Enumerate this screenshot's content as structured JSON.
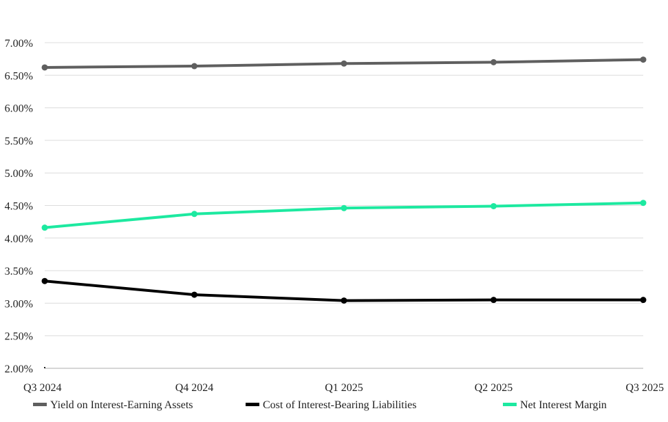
{
  "chart_data": {
    "type": "line",
    "categories": [
      "Q3 2024",
      "Q4 2024",
      "Q1 2025",
      "Q2 2025",
      "Q3 2025"
    ],
    "series": [
      {
        "name": "Yield on Interest-Earning Assets",
        "color": "#5f5f5f",
        "values": [
          6.62,
          6.64,
          6.68,
          6.7,
          6.74
        ]
      },
      {
        "name": "Cost of Interest-Bearing Liabilities",
        "color": "#000000",
        "values": [
          3.34,
          3.13,
          3.04,
          3.05,
          3.05
        ]
      },
      {
        "name": "Net Interest Margin",
        "color": "#1de9a0",
        "values": [
          4.16,
          4.37,
          4.46,
          4.49,
          4.54
        ]
      }
    ],
    "yticks": [
      "2.00%",
      "2.50%",
      "3.00%",
      "3.50%",
      "4.00%",
      "4.50%",
      "5.00%",
      "5.50%",
      "6.00%",
      "6.50%",
      "7.00%"
    ],
    "ylim": [
      2.0,
      7.0
    ],
    "grid": true,
    "legend_position": "bottom",
    "title": "",
    "xlabel": "",
    "ylabel": ""
  }
}
